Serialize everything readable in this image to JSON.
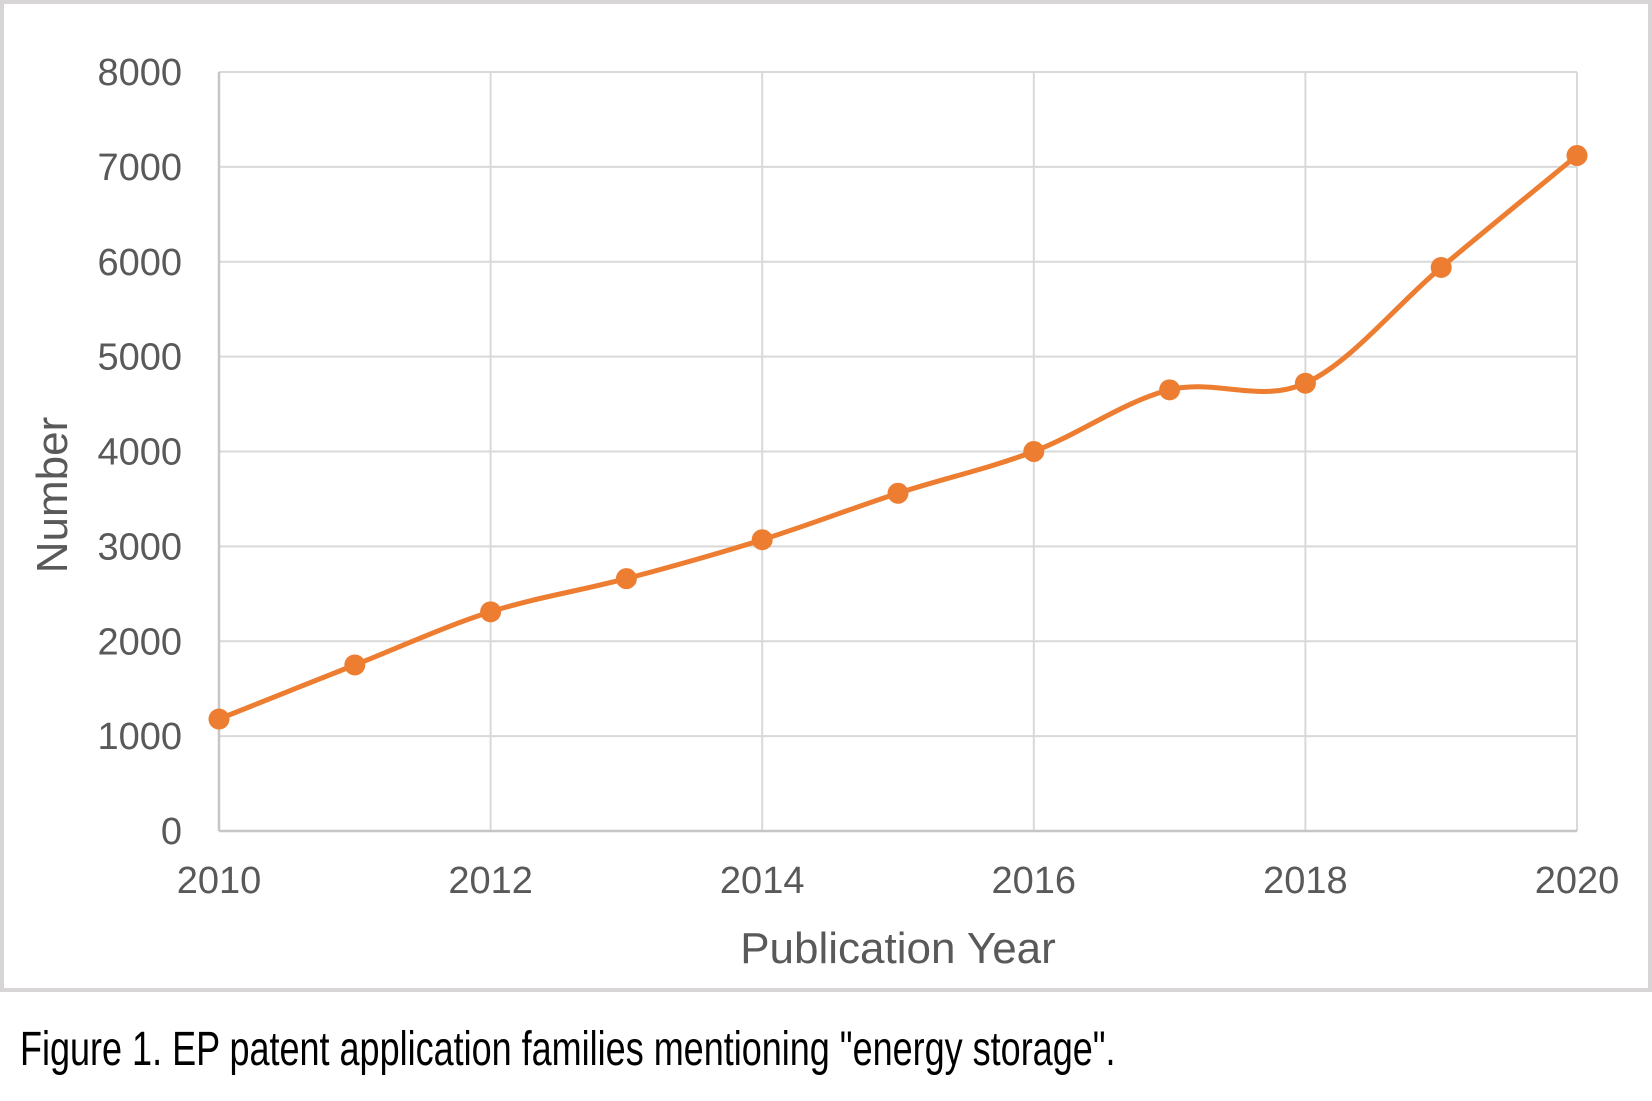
{
  "figure": {
    "caption": "Figure 1. EP patent application families mentioning \"energy storage\"."
  },
  "chart_data": {
    "type": "line",
    "title": "",
    "xlabel": "Publication Year",
    "ylabel": "Number",
    "x": [
      2010,
      2011,
      2012,
      2013,
      2014,
      2015,
      2016,
      2017,
      2018,
      2019,
      2020
    ],
    "values": [
      1180,
      1750,
      2310,
      2660,
      3070,
      3560,
      4000,
      4650,
      4720,
      5940,
      7120
    ],
    "xlim": [
      2010,
      2020
    ],
    "ylim": [
      0,
      8000
    ],
    "x_ticks": [
      2010,
      2012,
      2014,
      2016,
      2018,
      2020
    ],
    "y_ticks": [
      0,
      1000,
      2000,
      3000,
      4000,
      5000,
      6000,
      7000,
      8000
    ],
    "grid": true,
    "legend": "none",
    "smooth": true,
    "marker": "circle",
    "line_color": "#ED7D31",
    "gridline_color": "#D9D9D9",
    "axis_line_color": "#C6C6C6",
    "axis_text_color": "#595959",
    "box_border_color": "#D7D5D5"
  }
}
